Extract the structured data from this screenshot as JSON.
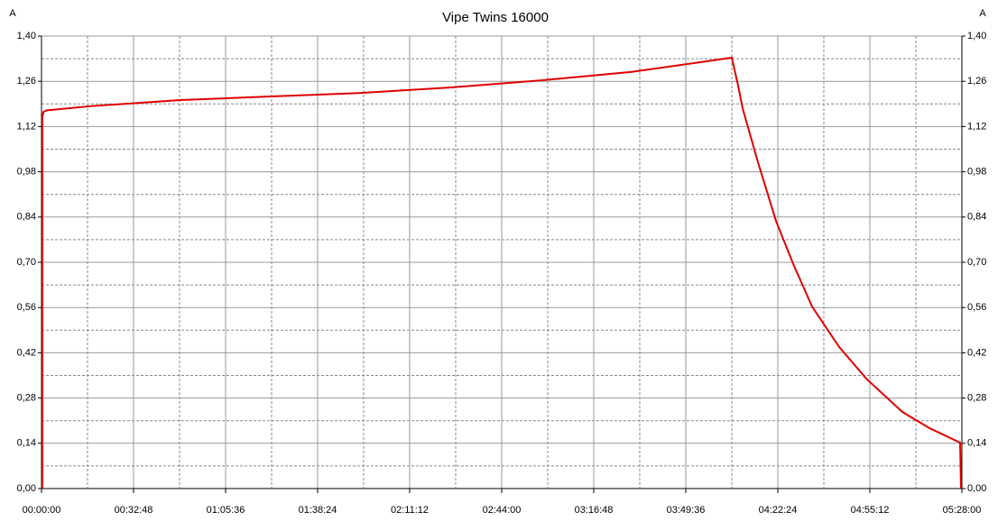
{
  "chart_data": {
    "type": "line",
    "title": "Vipe Twins 16000",
    "y_label": "A",
    "y2_label": "A",
    "xlim": [
      0,
      19680
    ],
    "xticks": [
      {
        "value": 0,
        "label": "00:00:00"
      },
      {
        "value": 1968,
        "label": "00:32:48"
      },
      {
        "value": 3936,
        "label": "01:05:36"
      },
      {
        "value": 5904,
        "label": "01:38:24"
      },
      {
        "value": 7872,
        "label": "02:11:12"
      },
      {
        "value": 9840,
        "label": "02:44:00"
      },
      {
        "value": 11808,
        "label": "03:16:48"
      },
      {
        "value": 13776,
        "label": "03:49:36"
      },
      {
        "value": 15744,
        "label": "04:22:24"
      },
      {
        "value": 17712,
        "label": "04:55:12"
      },
      {
        "value": 19680,
        "label": "05:28:00"
      }
    ],
    "ylim": [
      0,
      1.4
    ],
    "yticks": [
      {
        "value": 0,
        "label": "0,00"
      },
      {
        "value": 0.14,
        "label": "0,14"
      },
      {
        "value": 0.28,
        "label": "0,28"
      },
      {
        "value": 0.42,
        "label": "0,42"
      },
      {
        "value": 0.56,
        "label": "0,56"
      },
      {
        "value": 0.7,
        "label": "0,70"
      },
      {
        "value": 0.84,
        "label": "0,84"
      },
      {
        "value": 0.98,
        "label": "0,98"
      },
      {
        "value": 1.12,
        "label": "1,12"
      },
      {
        "value": 1.26,
        "label": "1,26"
      },
      {
        "value": 1.4,
        "label": "1,40"
      }
    ],
    "y2lim": [
      0,
      1.4
    ],
    "y2ticks": [
      {
        "value": 0,
        "label": "0,00"
      },
      {
        "value": 0.14,
        "label": "0,14"
      },
      {
        "value": 0.28,
        "label": "0,28"
      },
      {
        "value": 0.42,
        "label": "0,42"
      },
      {
        "value": 0.56,
        "label": "0,56"
      },
      {
        "value": 0.7,
        "label": "0,70"
      },
      {
        "value": 0.84,
        "label": "0,84"
      },
      {
        "value": 0.98,
        "label": "0,98"
      },
      {
        "value": 1.12,
        "label": "1,12"
      },
      {
        "value": 1.26,
        "label": "1,26"
      },
      {
        "value": 1.4,
        "label": "1,40"
      }
    ],
    "grid": true,
    "x": [
      19,
      19,
      40,
      100,
      1042,
      2971,
      4901,
      6830,
      8760,
      10689,
      12618,
      14760,
      14895,
      14991,
      15319,
      15705,
      16091,
      16477,
      17056,
      17635,
      18407,
      18986,
      19642,
      19661
    ],
    "series": [
      {
        "color": "#e00000",
        "values": [
          0,
          1.15,
          1.165,
          1.17,
          1.183,
          1.202,
          1.213,
          1.224,
          1.241,
          1.263,
          1.289,
          1.333,
          1.247,
          1.177,
          1.01,
          0.828,
          0.689,
          0.563,
          0.438,
          0.34,
          0.237,
          0.187,
          0.142,
          0
        ]
      }
    ]
  }
}
